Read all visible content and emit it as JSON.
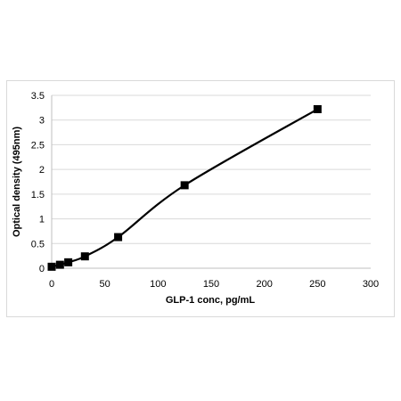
{
  "chart_data": {
    "type": "scatter",
    "title": "",
    "xlabel": "GLP-1 conc, pg/mL",
    "ylabel": "Optical density (495nm)",
    "xlim": [
      0,
      300
    ],
    "ylim": [
      0,
      3.5
    ],
    "x_ticks": [
      0,
      50,
      100,
      150,
      200,
      250,
      300
    ],
    "y_ticks": [
      0,
      0.5,
      1,
      1.5,
      2,
      2.5,
      3,
      3.5
    ],
    "x_tick_labels": [
      "0",
      "50",
      "100",
      "150",
      "200",
      "250",
      "300"
    ],
    "y_tick_labels": [
      "0",
      "0.5",
      "1",
      "1.5",
      "2",
      "2.5",
      "3",
      "3.5"
    ],
    "grid": "horizontal",
    "smoothed_line": true,
    "marker": "square",
    "series_color": "#000000",
    "series": [
      {
        "name": "",
        "points": [
          {
            "x": 0,
            "y": 0.03
          },
          {
            "x": 7.8,
            "y": 0.07
          },
          {
            "x": 15.6,
            "y": 0.12
          },
          {
            "x": 31.25,
            "y": 0.24
          },
          {
            "x": 62.5,
            "y": 0.63
          },
          {
            "x": 125,
            "y": 1.68
          },
          {
            "x": 250,
            "y": 3.22
          }
        ]
      }
    ]
  }
}
